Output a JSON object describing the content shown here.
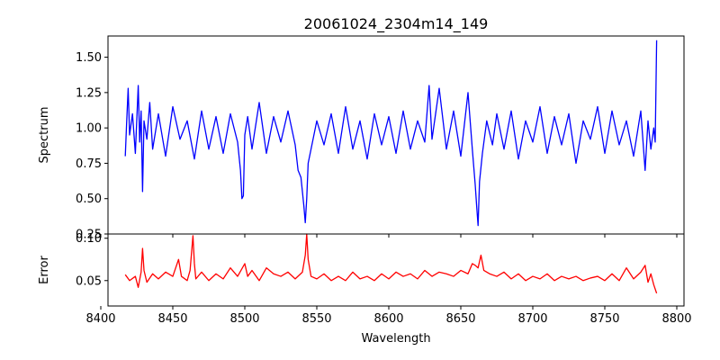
{
  "chart_data": [
    {
      "type": "line",
      "title": "20061024_2304m14_149",
      "xlabel": "",
      "ylabel": "Spectrum",
      "xlim": [
        8405,
        8805
      ],
      "ylim": [
        0.25,
        1.65
      ],
      "xticks": [
        8400,
        8450,
        8500,
        8550,
        8600,
        8650,
        8700,
        8750,
        8800
      ],
      "yticks": [
        0.25,
        0.5,
        0.75,
        1.0,
        1.25,
        1.5
      ],
      "ytick_labels": [
        "0.25",
        "0.50",
        "0.75",
        "1.00",
        "1.25",
        "1.50"
      ],
      "series": [
        {
          "color": "#0000ff",
          "x": [
            8417,
            8418,
            8419,
            8420,
            8422,
            8424,
            8426,
            8427,
            8428,
            8429,
            8430,
            8432,
            8434,
            8436,
            8440,
            8445,
            8450,
            8455,
            8460,
            8465,
            8470,
            8475,
            8480,
            8485,
            8490,
            8495,
            8497,
            8498,
            8499,
            8500,
            8502,
            8505,
            8510,
            8515,
            8520,
            8525,
            8530,
            8535,
            8537,
            8539,
            8540,
            8541,
            8542,
            8543,
            8544,
            8546,
            8550,
            8555,
            8560,
            8565,
            8570,
            8575,
            8580,
            8585,
            8590,
            8595,
            8600,
            8605,
            8610,
            8615,
            8620,
            8625,
            8628,
            8630,
            8635,
            8640,
            8645,
            8650,
            8655,
            8658,
            8660,
            8661,
            8662,
            8663,
            8665,
            8668,
            8672,
            8675,
            8680,
            8685,
            8690,
            8695,
            8700,
            8705,
            8710,
            8715,
            8720,
            8725,
            8730,
            8735,
            8740,
            8745,
            8750,
            8755,
            8760,
            8765,
            8770,
            8775,
            8778,
            8780,
            8782,
            8784,
            8785,
            8786
          ],
          "y": [
            0.8,
            1.05,
            1.28,
            0.95,
            1.1,
            0.82,
            1.3,
            0.9,
            1.12,
            0.55,
            1.05,
            0.92,
            1.18,
            0.85,
            1.1,
            0.8,
            1.15,
            0.92,
            1.05,
            0.78,
            1.12,
            0.85,
            1.08,
            0.82,
            1.1,
            0.9,
            0.7,
            0.5,
            0.52,
            0.95,
            1.08,
            0.85,
            1.18,
            0.82,
            1.08,
            0.9,
            1.12,
            0.88,
            0.7,
            0.65,
            0.55,
            0.45,
            0.33,
            0.5,
            0.75,
            0.85,
            1.05,
            0.88,
            1.1,
            0.82,
            1.15,
            0.85,
            1.05,
            0.78,
            1.1,
            0.88,
            1.08,
            0.82,
            1.12,
            0.85,
            1.05,
            0.9,
            1.3,
            0.92,
            1.28,
            0.85,
            1.12,
            0.8,
            1.25,
            0.85,
            0.6,
            0.45,
            0.31,
            0.62,
            0.82,
            1.05,
            0.88,
            1.1,
            0.85,
            1.12,
            0.78,
            1.05,
            0.9,
            1.15,
            0.82,
            1.08,
            0.88,
            1.1,
            0.75,
            1.05,
            0.92,
            1.15,
            0.82,
            1.12,
            0.88,
            1.05,
            0.8,
            1.12,
            0.7,
            1.05,
            0.85,
            1.0,
            0.9,
            1.62
          ]
        }
      ]
    },
    {
      "type": "line",
      "title": "",
      "xlabel": "Wavelength",
      "ylabel": "Error",
      "xlim": [
        8405,
        8805
      ],
      "ylim": [
        0.02,
        0.105
      ],
      "xticks": [
        8400,
        8450,
        8500,
        8550,
        8600,
        8650,
        8700,
        8750,
        8800
      ],
      "xtick_labels": [
        "8400",
        "8450",
        "8500",
        "8550",
        "8600",
        "8650",
        "8700",
        "8750",
        "8800"
      ],
      "yticks": [
        0.05,
        0.1
      ],
      "ytick_labels": [
        "0.05",
        "0.10"
      ],
      "series": [
        {
          "color": "#ff0000",
          "x": [
            8417,
            8420,
            8424,
            8426,
            8428,
            8429,
            8430,
            8432,
            8436,
            8440,
            8445,
            8450,
            8452,
            8454,
            8456,
            8460,
            8462,
            8464,
            8465,
            8466,
            8470,
            8475,
            8480,
            8485,
            8490,
            8495,
            8500,
            8502,
            8505,
            8510,
            8515,
            8520,
            8525,
            8530,
            8535,
            8540,
            8542,
            8543,
            8544,
            8546,
            8550,
            8555,
            8560,
            8565,
            8570,
            8575,
            8580,
            8585,
            8590,
            8595,
            8600,
            8605,
            8610,
            8615,
            8620,
            8625,
            8630,
            8635,
            8640,
            8645,
            8650,
            8655,
            8658,
            8660,
            8662,
            8664,
            8666,
            8670,
            8675,
            8680,
            8685,
            8690,
            8695,
            8700,
            8705,
            8710,
            8715,
            8720,
            8725,
            8730,
            8735,
            8740,
            8745,
            8750,
            8755,
            8760,
            8765,
            8770,
            8775,
            8778,
            8780,
            8782,
            8784,
            8786
          ],
          "y": [
            0.057,
            0.05,
            0.055,
            0.042,
            0.06,
            0.088,
            0.062,
            0.048,
            0.058,
            0.052,
            0.06,
            0.055,
            0.065,
            0.075,
            0.055,
            0.05,
            0.062,
            0.103,
            0.07,
            0.052,
            0.06,
            0.05,
            0.058,
            0.052,
            0.065,
            0.055,
            0.07,
            0.055,
            0.062,
            0.05,
            0.065,
            0.058,
            0.055,
            0.06,
            0.052,
            0.06,
            0.08,
            0.105,
            0.075,
            0.055,
            0.052,
            0.058,
            0.05,
            0.055,
            0.05,
            0.06,
            0.052,
            0.055,
            0.05,
            0.058,
            0.052,
            0.06,
            0.055,
            0.058,
            0.052,
            0.062,
            0.055,
            0.06,
            0.058,
            0.055,
            0.062,
            0.058,
            0.07,
            0.068,
            0.065,
            0.08,
            0.062,
            0.058,
            0.055,
            0.06,
            0.052,
            0.058,
            0.05,
            0.055,
            0.052,
            0.058,
            0.05,
            0.055,
            0.052,
            0.055,
            0.05,
            0.053,
            0.055,
            0.05,
            0.058,
            0.05,
            0.065,
            0.052,
            0.06,
            0.068,
            0.048,
            0.058,
            0.045,
            0.035
          ]
        }
      ]
    }
  ]
}
